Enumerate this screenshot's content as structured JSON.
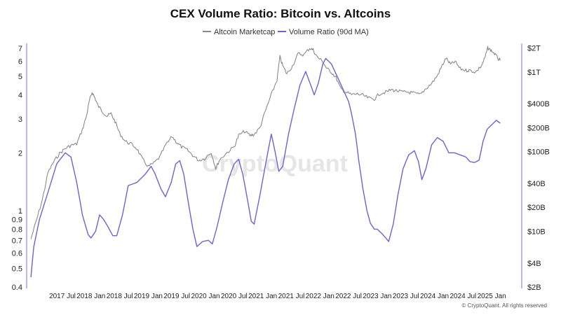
{
  "chart_data": {
    "type": "line",
    "title": "CEX Volume Ratio: Bitcoin vs. Altcoins",
    "legend": [
      "Altcoin Marketcap",
      "Volume Ratio (90d MA)"
    ],
    "legend_position": "top-center",
    "watermark": "CryptoQuant",
    "footer": "© CryptoQuant. All rights reserved",
    "colors": {
      "altcoin": "#8a8a8a",
      "ratio": "#6b63d9",
      "axis": "#9b8bff"
    },
    "x_ticks": [
      {
        "label": "2017 Jul",
        "t": 2017.5
      },
      {
        "label": "2018 Jan",
        "t": 2018.0
      },
      {
        "label": "2018 Jul",
        "t": 2018.5
      },
      {
        "label": "2019 Jan",
        "t": 2019.0
      },
      {
        "label": "2019 Jul",
        "t": 2019.5
      },
      {
        "label": "2020 Jan",
        "t": 2020.0
      },
      {
        "label": "2020 Jul",
        "t": 2020.5
      },
      {
        "label": "2021 Jan",
        "t": 2021.0
      },
      {
        "label": "2021 Jul",
        "t": 2021.5
      },
      {
        "label": "2022 Jan",
        "t": 2022.0
      },
      {
        "label": "2022 Jul",
        "t": 2022.5
      },
      {
        "label": "2023 Jan",
        "t": 2023.0
      },
      {
        "label": "2023 Jul",
        "t": 2023.5
      },
      {
        "label": "2024 Jan",
        "t": 2024.0
      },
      {
        "label": "2024 Jul",
        "t": 2024.5
      },
      {
        "label": "2025 Jan",
        "t": 2025.0
      }
    ],
    "x_range": [
      2016.9,
      2025.5
    ],
    "y_left": {
      "scale": "log",
      "range": [
        0.4,
        7.3
      ],
      "ticks": [
        {
          "label": "0.4",
          "v": 0.4
        },
        {
          "label": "0.5",
          "v": 0.5
        },
        {
          "label": "0.6",
          "v": 0.6
        },
        {
          "label": "0.7",
          "v": 0.7
        },
        {
          "label": "0.8",
          "v": 0.8
        },
        {
          "label": "0.9",
          "v": 0.9
        },
        {
          "label": "1",
          "v": 1
        },
        {
          "label": "2",
          "v": 2
        },
        {
          "label": "3",
          "v": 3
        },
        {
          "label": "4",
          "v": 4
        },
        {
          "label": "5",
          "v": 5
        },
        {
          "label": "6",
          "v": 6
        },
        {
          "label": "7",
          "v": 7
        }
      ]
    },
    "y_right": {
      "scale": "log",
      "range": [
        2,
        2200
      ],
      "ticks": [
        {
          "label": "$2B",
          "v": 2
        },
        {
          "label": "$4B",
          "v": 4
        },
        {
          "label": "$10B",
          "v": 10
        },
        {
          "label": "$20B",
          "v": 20
        },
        {
          "label": "$40B",
          "v": 40
        },
        {
          "label": "$100B",
          "v": 100
        },
        {
          "label": "$200B",
          "v": 200
        },
        {
          "label": "$400B",
          "v": 400
        },
        {
          "label": "$1T",
          "v": 1000
        },
        {
          "label": "$2T",
          "v": 2000
        }
      ]
    },
    "series": [
      {
        "name": "Volume Ratio (90d MA)",
        "axis": "left",
        "points": [
          [
            2016.95,
            0.45
          ],
          [
            2017.0,
            0.65
          ],
          [
            2017.1,
            0.9
          ],
          [
            2017.25,
            1.25
          ],
          [
            2017.4,
            1.75
          ],
          [
            2017.55,
            2.0
          ],
          [
            2017.65,
            1.9
          ],
          [
            2017.75,
            1.4
          ],
          [
            2017.85,
            0.95
          ],
          [
            2017.95,
            0.75
          ],
          [
            2018.0,
            0.72
          ],
          [
            2018.08,
            0.78
          ],
          [
            2018.15,
            0.95
          ],
          [
            2018.22,
            0.9
          ],
          [
            2018.3,
            0.82
          ],
          [
            2018.38,
            0.74
          ],
          [
            2018.45,
            0.74
          ],
          [
            2018.55,
            0.95
          ],
          [
            2018.65,
            1.35
          ],
          [
            2018.8,
            1.4
          ],
          [
            2018.95,
            1.55
          ],
          [
            2019.05,
            1.7
          ],
          [
            2019.12,
            1.55
          ],
          [
            2019.22,
            1.3
          ],
          [
            2019.3,
            1.18
          ],
          [
            2019.4,
            1.4
          ],
          [
            2019.48,
            1.75
          ],
          [
            2019.55,
            1.82
          ],
          [
            2019.62,
            1.55
          ],
          [
            2019.7,
            1.1
          ],
          [
            2019.78,
            0.8
          ],
          [
            2019.85,
            0.65
          ],
          [
            2019.95,
            0.69
          ],
          [
            2020.05,
            0.7
          ],
          [
            2020.12,
            0.67
          ],
          [
            2020.2,
            0.82
          ],
          [
            2020.3,
            1.1
          ],
          [
            2020.4,
            1.45
          ],
          [
            2020.5,
            1.75
          ],
          [
            2020.58,
            1.85
          ],
          [
            2020.65,
            1.55
          ],
          [
            2020.72,
            1.2
          ],
          [
            2020.8,
            0.88
          ],
          [
            2020.85,
            0.85
          ],
          [
            2020.95,
            1.2
          ],
          [
            2021.05,
            1.75
          ],
          [
            2021.15,
            2.5
          ],
          [
            2021.22,
            2.0
          ],
          [
            2021.28,
            1.6
          ],
          [
            2021.35,
            1.7
          ],
          [
            2021.45,
            2.5
          ],
          [
            2021.55,
            3.4
          ],
          [
            2021.65,
            4.5
          ],
          [
            2021.75,
            5.3
          ],
          [
            2021.85,
            4.4
          ],
          [
            2021.9,
            4.0
          ],
          [
            2021.97,
            4.6
          ],
          [
            2022.05,
            5.8
          ],
          [
            2022.1,
            6.2
          ],
          [
            2022.2,
            5.8
          ],
          [
            2022.3,
            5.0
          ],
          [
            2022.4,
            4.3
          ],
          [
            2022.5,
            3.7
          ],
          [
            2022.55,
            3.2
          ],
          [
            2022.62,
            2.5
          ],
          [
            2022.68,
            1.8
          ],
          [
            2022.75,
            1.3
          ],
          [
            2022.82,
            1.0
          ],
          [
            2022.88,
            0.86
          ],
          [
            2022.95,
            0.8
          ],
          [
            2023.0,
            0.8
          ],
          [
            2023.08,
            0.76
          ],
          [
            2023.15,
            0.72
          ],
          [
            2023.2,
            0.69
          ],
          [
            2023.28,
            0.85
          ],
          [
            2023.36,
            1.2
          ],
          [
            2023.45,
            1.65
          ],
          [
            2023.55,
            1.95
          ],
          [
            2023.65,
            2.05
          ],
          [
            2023.72,
            1.8
          ],
          [
            2023.78,
            1.45
          ],
          [
            2023.85,
            1.65
          ],
          [
            2023.95,
            2.2
          ],
          [
            2024.05,
            2.4
          ],
          [
            2024.15,
            2.3
          ],
          [
            2024.25,
            2.0
          ],
          [
            2024.35,
            2.0
          ],
          [
            2024.45,
            1.95
          ],
          [
            2024.55,
            1.9
          ],
          [
            2024.62,
            1.8
          ],
          [
            2024.7,
            1.78
          ],
          [
            2024.78,
            1.83
          ],
          [
            2024.85,
            2.3
          ],
          [
            2024.92,
            2.65
          ],
          [
            2025.0,
            2.8
          ],
          [
            2025.08,
            2.95
          ],
          [
            2025.15,
            2.85
          ]
        ]
      },
      {
        "name": "Altcoin Marketcap",
        "axis": "right",
        "points": [
          [
            2016.95,
            8
          ],
          [
            2017.05,
            14
          ],
          [
            2017.15,
            25
          ],
          [
            2017.25,
            55
          ],
          [
            2017.35,
            75
          ],
          [
            2017.45,
            95
          ],
          [
            2017.55,
            110
          ],
          [
            2017.65,
            120
          ],
          [
            2017.75,
            125
          ],
          [
            2017.85,
            190
          ],
          [
            2017.92,
            280
          ],
          [
            2017.97,
            430
          ],
          [
            2018.02,
            560
          ],
          [
            2018.07,
            470
          ],
          [
            2018.12,
            380
          ],
          [
            2018.2,
            320
          ],
          [
            2018.28,
            280
          ],
          [
            2018.35,
            300
          ],
          [
            2018.42,
            240
          ],
          [
            2018.5,
            170
          ],
          [
            2018.6,
            135
          ],
          [
            2018.7,
            125
          ],
          [
            2018.8,
            110
          ],
          [
            2018.9,
            80
          ],
          [
            2019.0,
            65
          ],
          [
            2019.1,
            72
          ],
          [
            2019.2,
            85
          ],
          [
            2019.3,
            120
          ],
          [
            2019.42,
            155
          ],
          [
            2019.5,
            130
          ],
          [
            2019.58,
            115
          ],
          [
            2019.68,
            105
          ],
          [
            2019.78,
            90
          ],
          [
            2019.88,
            78
          ],
          [
            2019.98,
            82
          ],
          [
            2020.1,
            98
          ],
          [
            2020.18,
            62
          ],
          [
            2020.25,
            80
          ],
          [
            2020.38,
            98
          ],
          [
            2020.5,
            115
          ],
          [
            2020.58,
            160
          ],
          [
            2020.68,
            180
          ],
          [
            2020.78,
            160
          ],
          [
            2020.85,
            165
          ],
          [
            2020.95,
            200
          ],
          [
            2021.05,
            330
          ],
          [
            2021.15,
            520
          ],
          [
            2021.25,
            800
          ],
          [
            2021.3,
            1550
          ],
          [
            2021.35,
            1200
          ],
          [
            2021.42,
            950
          ],
          [
            2021.52,
            1200
          ],
          [
            2021.62,
            1700
          ],
          [
            2021.72,
            1650
          ],
          [
            2021.82,
            2000
          ],
          [
            2021.88,
            1900
          ],
          [
            2021.95,
            1550
          ],
          [
            2022.05,
            1350
          ],
          [
            2022.12,
            1100
          ],
          [
            2022.2,
            1000
          ],
          [
            2022.28,
            850
          ],
          [
            2022.36,
            620
          ],
          [
            2022.45,
            560
          ],
          [
            2022.55,
            520
          ],
          [
            2022.65,
            530
          ],
          [
            2022.75,
            510
          ],
          [
            2022.85,
            470
          ],
          [
            2022.95,
            460
          ],
          [
            2023.05,
            540
          ],
          [
            2023.15,
            560
          ],
          [
            2023.25,
            600
          ],
          [
            2023.35,
            580
          ],
          [
            2023.45,
            560
          ],
          [
            2023.55,
            560
          ],
          [
            2023.65,
            540
          ],
          [
            2023.75,
            520
          ],
          [
            2023.85,
            620
          ],
          [
            2023.95,
            720
          ],
          [
            2024.05,
            900
          ],
          [
            2024.12,
            1150
          ],
          [
            2024.2,
            1500
          ],
          [
            2024.28,
            1250
          ],
          [
            2024.36,
            1350
          ],
          [
            2024.45,
            1100
          ],
          [
            2024.55,
            1050
          ],
          [
            2024.62,
            1050
          ],
          [
            2024.72,
            1000
          ],
          [
            2024.82,
            1200
          ],
          [
            2024.88,
            1500
          ],
          [
            2024.93,
            2000
          ],
          [
            2024.98,
            1900
          ],
          [
            2025.05,
            1700
          ],
          [
            2025.12,
            1450
          ],
          [
            2025.15,
            1400
          ]
        ]
      }
    ]
  }
}
